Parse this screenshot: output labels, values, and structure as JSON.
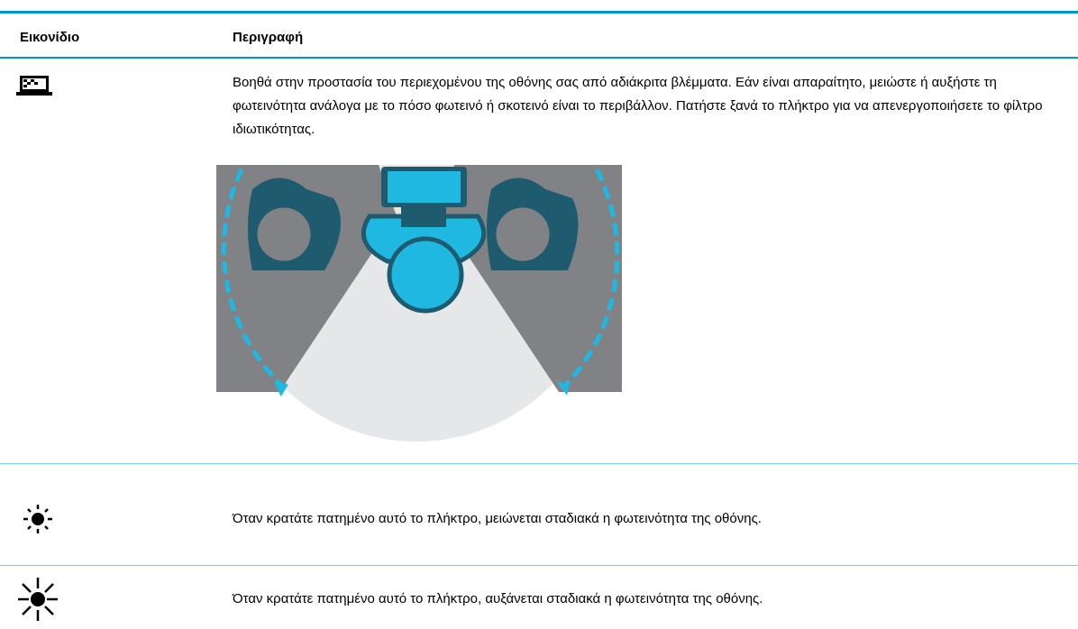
{
  "table": {
    "columns": [
      "Εικονίδιο",
      "Περιγραφή"
    ],
    "rows": [
      {
        "description": "Βοηθά στην προστασία του περιεχομένου της οθόνης σας από αδιάκριτα βλέμματα. Εάν είναι απαραίτητο, μειώστε ή αυξήστε τη φωτεινότητα ανάλογα με το πόσο φωτεινό ή σκοτεινό είναι το περιβάλλον. Πατήστε ξανά το πλήκτρο για να απενεργοποιήσετε το φίλτρο ιδιωτικότητας."
      },
      {
        "description": "Όταν κρατάτε πατημένο αυτό το πλήκτρο, μειώνεται σταδιακά η φωτεινότητα της οθόνης."
      },
      {
        "description": "Όταν κρατάτε πατημένο αυτό το πλήκτρο, αυξάνεται σταδιακά η φωτεινότητα της οθόνης."
      }
    ]
  }
}
